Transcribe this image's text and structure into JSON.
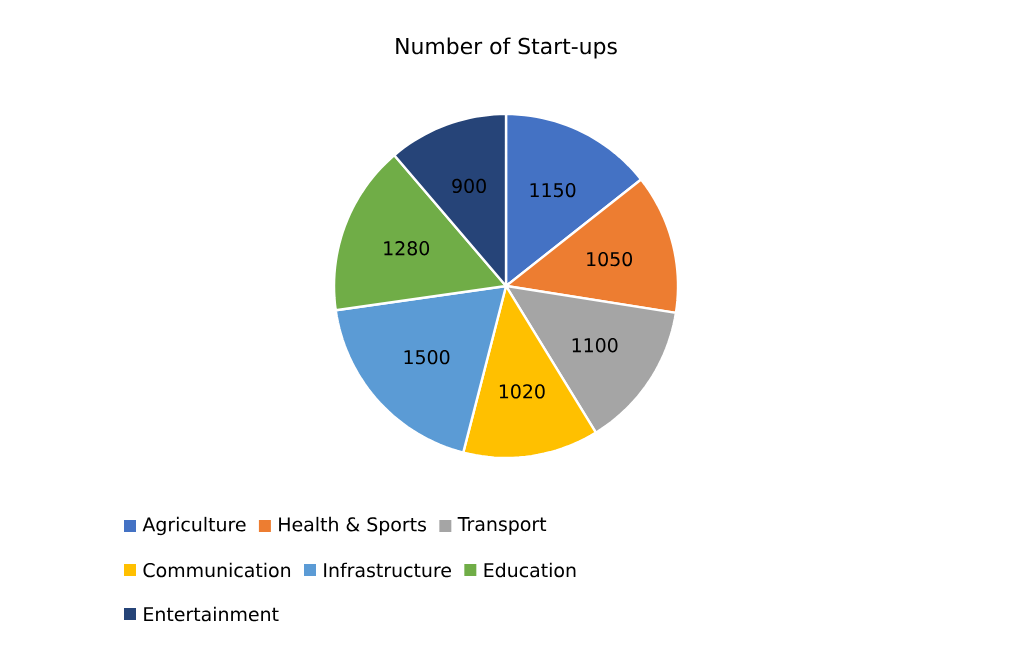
{
  "chart_data": {
    "type": "pie",
    "title": "Number of Start-ups",
    "categories": [
      "Agriculture",
      "Health & Sports",
      "Transport",
      "Communication",
      "Infrastructure",
      "Education",
      "Entertainment"
    ],
    "values": [
      1150,
      1050,
      1100,
      1020,
      1500,
      1280,
      900
    ],
    "colors": [
      "#4472c4",
      "#ed7d31",
      "#a5a5a5",
      "#ffc000",
      "#5b9bd5",
      "#70ad47",
      "#264478"
    ],
    "data_labels": true,
    "legend": "bottom"
  }
}
